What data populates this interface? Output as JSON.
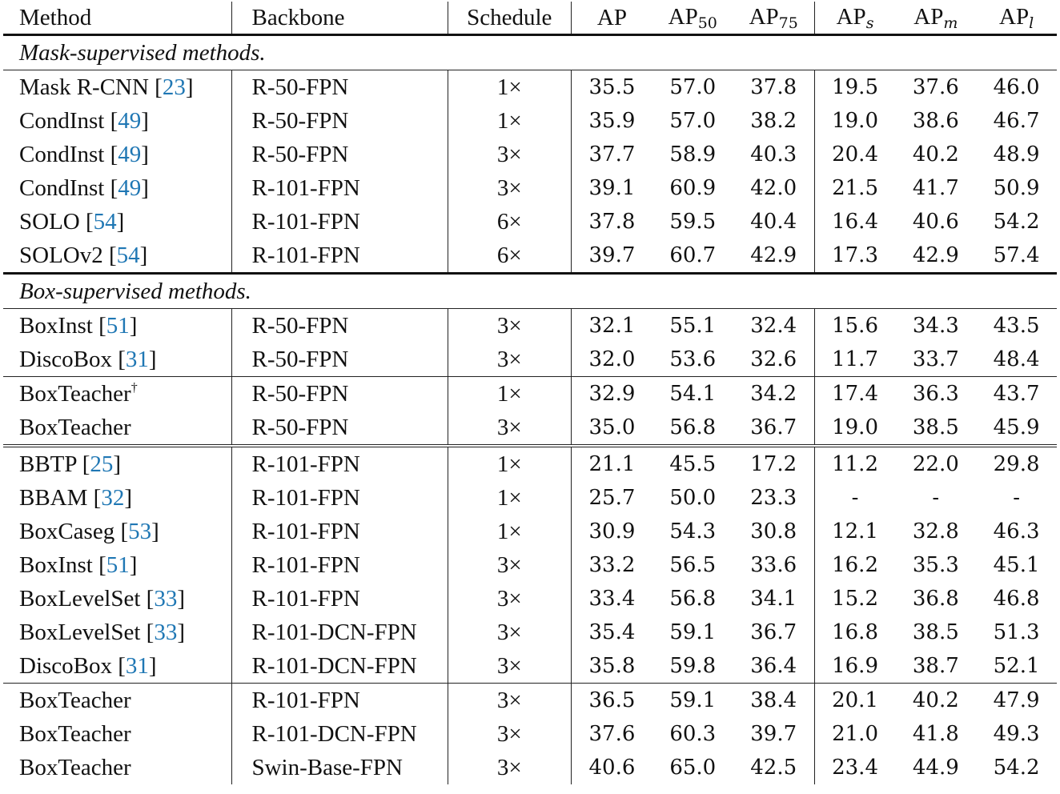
{
  "table": {
    "headers": {
      "method": "Method",
      "backbone": "Backbone",
      "schedule": "Schedule",
      "ap": "AP",
      "ap50": {
        "base": "AP",
        "sub": "50"
      },
      "ap75": {
        "base": "AP",
        "sub": "75"
      },
      "aps": {
        "base": "AP",
        "sub": "s"
      },
      "apm": {
        "base": "AP",
        "sub": "m"
      },
      "apl": {
        "base": "AP",
        "sub": "l"
      }
    },
    "sections": [
      {
        "title": "Mask-supervised methods.",
        "groups": [
          [
            {
              "method": "Mask R-CNN ",
              "cite": "23",
              "backbone": "R-50-FPN",
              "schedule": "1×",
              "ap": "35.5",
              "ap50": "57.0",
              "ap75": "37.8",
              "aps": "19.5",
              "apm": "37.6",
              "apl": "46.0"
            },
            {
              "method": "CondInst ",
              "cite": "49",
              "backbone": "R-50-FPN",
              "schedule": "1×",
              "ap": "35.9",
              "ap50": "57.0",
              "ap75": "38.2",
              "aps": "19.0",
              "apm": "38.6",
              "apl": "46.7"
            },
            {
              "method": "CondInst ",
              "cite": "49",
              "backbone": "R-50-FPN",
              "schedule": "3×",
              "ap": "37.7",
              "ap50": "58.9",
              "ap75": "40.3",
              "aps": "20.4",
              "apm": "40.2",
              "apl": "48.9"
            },
            {
              "method": "CondInst ",
              "cite": "49",
              "backbone": "R-101-FPN",
              "schedule": "3×",
              "ap": "39.1",
              "ap50": "60.9",
              "ap75": "42.0",
              "aps": "21.5",
              "apm": "41.7",
              "apl": "50.9"
            },
            {
              "method": "SOLO ",
              "cite": "54",
              "backbone": "R-101-FPN",
              "schedule": "6×",
              "ap": "37.8",
              "ap50": "59.5",
              "ap75": "40.4",
              "aps": "16.4",
              "apm": "40.6",
              "apl": "54.2"
            },
            {
              "method": "SOLOv2 ",
              "cite": "54",
              "backbone": "R-101-FPN",
              "schedule": "6×",
              "ap": "39.7",
              "ap50": "60.7",
              "ap75": "42.9",
              "aps": "17.3",
              "apm": "42.9",
              "apl": "57.4"
            }
          ]
        ]
      },
      {
        "title": "Box-supervised methods.",
        "groups": [
          [
            {
              "method": "BoxInst ",
              "cite": "51",
              "backbone": "R-50-FPN",
              "schedule": "3×",
              "ap": "32.1",
              "ap50": "55.1",
              "ap75": "32.4",
              "aps": "15.6",
              "apm": "34.3",
              "apl": "43.5"
            },
            {
              "method": "DiscoBox ",
              "cite": "31",
              "backbone": "R-50-FPN",
              "schedule": "3×",
              "ap": "32.0",
              "ap50": "53.6",
              "ap75": "32.6",
              "aps": "11.7",
              "apm": "33.7",
              "apl": "48.4"
            }
          ],
          [
            {
              "method": "BoxTeacher",
              "sup": "†",
              "backbone": "R-50-FPN",
              "schedule": "1×",
              "ap": "32.9",
              "ap50": "54.1",
              "ap75": "34.2",
              "aps": "17.4",
              "apm": "36.3",
              "apl": "43.7"
            },
            {
              "method": "BoxTeacher",
              "backbone": "R-50-FPN",
              "schedule": "3×",
              "ap": "35.0",
              "ap50": "56.8",
              "ap75": "36.7",
              "aps": "19.0",
              "apm": "38.5",
              "apl": "45.9"
            }
          ],
          [
            {
              "method": "BBTP ",
              "cite": "25",
              "backbone": "R-101-FPN",
              "schedule": "1×",
              "ap": "21.1",
              "ap50": "45.5",
              "ap75": "17.2",
              "aps": "11.2",
              "apm": "22.0",
              "apl": "29.8"
            },
            {
              "method": "BBAM ",
              "cite": "32",
              "backbone": "R-101-FPN",
              "schedule": "1×",
              "ap": "25.7",
              "ap50": "50.0",
              "ap75": "23.3",
              "aps": "-",
              "apm": "-",
              "apl": "-"
            },
            {
              "method": "BoxCaseg ",
              "cite": "53",
              "backbone": "R-101-FPN",
              "schedule": "1×",
              "ap": "30.9",
              "ap50": "54.3",
              "ap75": "30.8",
              "aps": "12.1",
              "apm": "32.8",
              "apl": "46.3"
            },
            {
              "method": "BoxInst ",
              "cite": "51",
              "backbone": "R-101-FPN",
              "schedule": "3×",
              "ap": "33.2",
              "ap50": "56.5",
              "ap75": "33.6",
              "aps": "16.2",
              "apm": "35.3",
              "apl": "45.1"
            },
            {
              "method": "BoxLevelSet ",
              "cite": "33",
              "backbone": "R-101-FPN",
              "schedule": "3×",
              "ap": "33.4",
              "ap50": "56.8",
              "ap75": "34.1",
              "aps": "15.2",
              "apm": "36.8",
              "apl": "46.8"
            },
            {
              "method": "BoxLevelSet ",
              "cite": "33",
              "backbone": "R-101-DCN-FPN",
              "schedule": "3×",
              "ap": "35.4",
              "ap50": "59.1",
              "ap75": "36.7",
              "aps": "16.8",
              "apm": "38.5",
              "apl": "51.3"
            },
            {
              "method": "DiscoBox ",
              "cite": "31",
              "backbone": "R-101-DCN-FPN",
              "schedule": "3×",
              "ap": "35.8",
              "ap50": "59.8",
              "ap75": "36.4",
              "aps": "16.9",
              "apm": "38.7",
              "apl": "52.1"
            }
          ],
          [
            {
              "method": "BoxTeacher",
              "backbone": "R-101-FPN",
              "schedule": "3×",
              "ap": "36.5",
              "ap50": "59.1",
              "ap75": "38.4",
              "aps": "20.1",
              "apm": "40.2",
              "apl": "47.9"
            },
            {
              "method": "BoxTeacher",
              "backbone": "R-101-DCN-FPN",
              "schedule": "3×",
              "ap": "37.6",
              "ap50": "60.3",
              "ap75": "39.7",
              "aps": "21.0",
              "apm": "41.8",
              "apl": "49.3"
            },
            {
              "method": "BoxTeacher",
              "backbone": "Swin-Base-FPN",
              "schedule": "3×",
              "ap": "40.6",
              "ap50": "65.0",
              "ap75": "42.5",
              "aps": "23.4",
              "apm": "44.9",
              "apl": "54.2"
            }
          ]
        ]
      }
    ]
  },
  "colors": {
    "citation": "#1f77b4",
    "text": "#111111",
    "background": "#ffffff"
  }
}
